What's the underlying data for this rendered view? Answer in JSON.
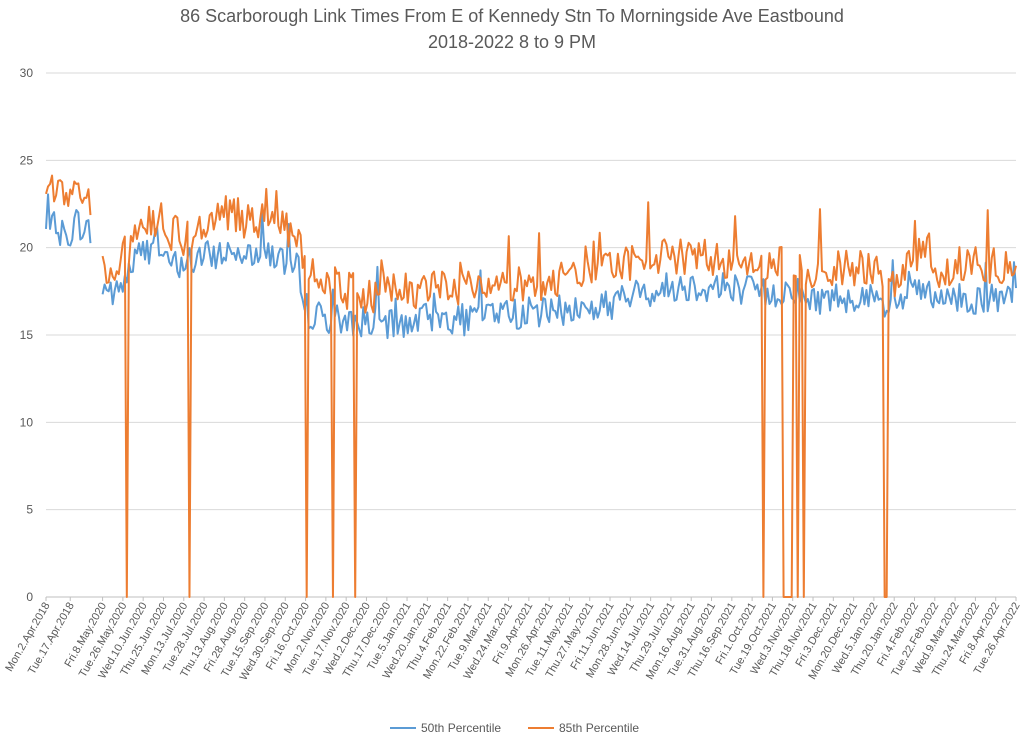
{
  "chart_data": {
    "type": "line",
    "title": [
      "86 Scarborough Link Times From E of Kennedy Stn To Morningside Ave Eastbound",
      "2018-2022 8 to 9 PM"
    ],
    "xlabel": "",
    "ylabel": "",
    "ylim": [
      0,
      30
    ],
    "yticks": [
      0,
      5,
      10,
      15,
      20,
      25,
      30
    ],
    "grid": "horizontal",
    "legend_position": "bottom",
    "x_tick_labels": [
      "Mon.2.Apr.2018",
      "Tue.17.Apr.2018",
      "Fri.8.May.2020",
      "Tue.26.May.2020",
      "Wed.10.Jun.2020",
      "Thu.25.Jun.2020",
      "Mon.13.Jul.2020",
      "Tue.28.Jul.2020",
      "Thu.13.Aug.2020",
      "Fri.28.Aug.2020",
      "Tue.15.Sep.2020",
      "Wed.30.Sep.2020",
      "Fri.16.Oct.2020",
      "Mon.2.Nov.2020",
      "Tue.17.Nov.2020",
      "Wed.2.Dec.2020",
      "Thu.17.Dec.2020",
      "Tue.5.Jan.2021",
      "Wed.20.Jan.2021",
      "Thu.4.Feb.2021",
      "Mon.22.Feb.2021",
      "Tue.9.Mar.2021",
      "Wed.24.Mar.2021",
      "Fri.9.Apr.2021",
      "Mon.26.Apr.2021",
      "Tue.11.May.2021",
      "Thu.27.May.2021",
      "Fri.11.Jun.2021",
      "Mon.28.Jun.2021",
      "Wed.14.Jul.2021",
      "Thu.29.Jul.2021",
      "Mon.16.Aug.2021",
      "Tue.31.Aug.2021",
      "Thu.16.Sep.2021",
      "Fri.1.Oct.2021",
      "Tue.19.Oct.2021",
      "Wed.3.Nov.2021",
      "Thu.18.Nov.2021",
      "Fri.3.Dec.2021",
      "Mon.20.Dec.2021",
      "Wed.5.Jan.2022",
      "Thu.20.Jan.2022",
      "Fri.4.Feb.2022",
      "Tue.22.Feb.2022",
      "Wed.9.Mar.2022",
      "Thu.24.Mar.2022",
      "Fri.8.Apr.2022",
      "Tue.26.Apr.2022"
    ],
    "x_count": 481,
    "series": [
      {
        "name": "50th Percentile",
        "color": "#5B9BD5",
        "anchors": [
          [
            0,
            20.9
          ],
          [
            5,
            21.2
          ],
          [
            10,
            20.5
          ],
          [
            15,
            21.5
          ],
          [
            20,
            21.0
          ],
          [
            22,
            20.8
          ],
          [
            25,
            null
          ],
          [
            28,
            17.8
          ],
          [
            35,
            17.3
          ],
          [
            45,
            19.5
          ],
          [
            55,
            20.3
          ],
          [
            60,
            19.0
          ],
          [
            70,
            19.2
          ],
          [
            80,
            19.5
          ],
          [
            90,
            19.8
          ],
          [
            100,
            19.8
          ],
          [
            110,
            19.8
          ],
          [
            120,
            19.0
          ],
          [
            125,
            18.8
          ],
          [
            130,
            16.2
          ],
          [
            140,
            16.0
          ],
          [
            150,
            15.8
          ],
          [
            160,
            15.8
          ],
          [
            170,
            15.5
          ],
          [
            180,
            15.8
          ],
          [
            190,
            16.0
          ],
          [
            200,
            16.0
          ],
          [
            210,
            15.8
          ],
          [
            220,
            16.5
          ],
          [
            230,
            16.2
          ],
          [
            240,
            16.3
          ],
          [
            250,
            16.3
          ],
          [
            260,
            16.5
          ],
          [
            270,
            16.5
          ],
          [
            280,
            16.8
          ],
          [
            290,
            17.3
          ],
          [
            300,
            17.5
          ],
          [
            310,
            17.8
          ],
          [
            320,
            17.8
          ],
          [
            330,
            17.8
          ],
          [
            340,
            17.8
          ],
          [
            350,
            17.5
          ],
          [
            360,
            17.3
          ],
          [
            370,
            17.8
          ],
          [
            375,
            17.0
          ],
          [
            380,
            17.0
          ],
          [
            390,
            17.2
          ],
          [
            400,
            17.2
          ],
          [
            410,
            17.0
          ],
          [
            415,
            16.5
          ],
          [
            420,
            16.5
          ],
          [
            428,
            17.5
          ],
          [
            435,
            17.5
          ],
          [
            440,
            16.8
          ],
          [
            450,
            17.0
          ],
          [
            460,
            17.0
          ],
          [
            470,
            17.0
          ],
          [
            480,
            17.0
          ]
        ],
        "drops": [],
        "gaps": [
          [
            23,
            27
          ]
        ]
      },
      {
        "name": "85th Percentile",
        "color": "#ED7D31",
        "anchors": [
          [
            0,
            22.5
          ],
          [
            5,
            23.5
          ],
          [
            10,
            23.3
          ],
          [
            15,
            23.0
          ],
          [
            20,
            22.5
          ],
          [
            22,
            22.5
          ],
          [
            25,
            null
          ],
          [
            28,
            18.5
          ],
          [
            35,
            19.0
          ],
          [
            45,
            20.5
          ],
          [
            55,
            21.8
          ],
          [
            60,
            21.0
          ],
          [
            70,
            20.5
          ],
          [
            80,
            21.5
          ],
          [
            90,
            22.0
          ],
          [
            100,
            21.5
          ],
          [
            110,
            21.5
          ],
          [
            120,
            21.0
          ],
          [
            125,
            20.5
          ],
          [
            130,
            18.5
          ],
          [
            140,
            18.0
          ],
          [
            150,
            17.5
          ],
          [
            160,
            17.3
          ],
          [
            170,
            17.5
          ],
          [
            180,
            17.5
          ],
          [
            190,
            17.8
          ],
          [
            200,
            18.0
          ],
          [
            210,
            17.5
          ],
          [
            220,
            18.0
          ],
          [
            230,
            17.8
          ],
          [
            240,
            18.0
          ],
          [
            250,
            18.0
          ],
          [
            260,
            18.3
          ],
          [
            270,
            18.5
          ],
          [
            280,
            18.8
          ],
          [
            290,
            19.3
          ],
          [
            300,
            19.5
          ],
          [
            310,
            19.5
          ],
          [
            320,
            19.5
          ],
          [
            330,
            19.3
          ],
          [
            340,
            19.3
          ],
          [
            350,
            19.0
          ],
          [
            360,
            19.0
          ],
          [
            370,
            19.5
          ],
          [
            375,
            18.8
          ],
          [
            380,
            18.8
          ],
          [
            390,
            18.8
          ],
          [
            400,
            18.8
          ],
          [
            410,
            18.5
          ],
          [
            415,
            18.0
          ],
          [
            420,
            18.0
          ],
          [
            428,
            19.8
          ],
          [
            435,
            19.5
          ],
          [
            440,
            18.8
          ],
          [
            450,
            19.0
          ],
          [
            460,
            19.0
          ],
          [
            470,
            19.0
          ],
          [
            480,
            19.2
          ]
        ],
        "drops": [
          [
            40,
            0
          ],
          [
            71,
            0
          ],
          [
            129,
            0
          ],
          [
            142,
            0
          ],
          [
            153,
            0
          ],
          [
            355,
            0
          ],
          [
            365,
            0
          ],
          [
            366,
            0
          ],
          [
            367,
            0
          ],
          [
            368,
            0
          ],
          [
            369,
            0
          ],
          [
            372,
            0
          ],
          [
            375,
            0
          ],
          [
            415,
            0
          ],
          [
            416,
            0
          ]
        ],
        "gaps": [
          [
            23,
            27
          ]
        ]
      }
    ]
  }
}
